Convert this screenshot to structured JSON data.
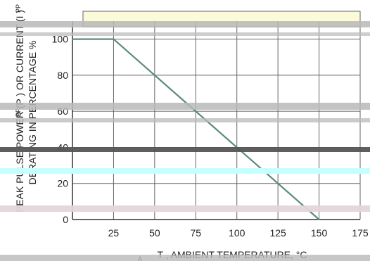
{
  "chart_data": {
    "type": "line",
    "title": "",
    "xlabel": "T  , AMBIENT TEMPERATURE, °C",
    "xlabel_subscript": "A",
    "ylabel_outer": "PEAK PULSE POWER (P  ) OR CURRENT (I  )",
    "ylabel_inner": "DERATING IN PERCENTAGE %",
    "ylabel_subscripts": [
      "PP",
      "PP"
    ],
    "xlim": [
      0,
      175
    ],
    "ylim": [
      0,
      110
    ],
    "x_ticks": [
      25,
      50,
      75,
      100,
      125,
      150,
      175
    ],
    "y_ticks": [
      0,
      20,
      40,
      60,
      80,
      100
    ],
    "grid": true,
    "series": [
      {
        "x": [
          0,
          25,
          150
        ],
        "y": [
          100,
          100,
          0
        ]
      }
    ],
    "colors": {
      "curve": "#5b8a80",
      "grid": "#666666",
      "axis": "#333333",
      "text": "#222222",
      "top_band": "#fcfbd9",
      "artifact_gray": "#b9b9b9",
      "artifact_dark": "#555555",
      "artifact_cyan": "#c7ffff",
      "artifact_pink": "#e5d5d8"
    }
  }
}
